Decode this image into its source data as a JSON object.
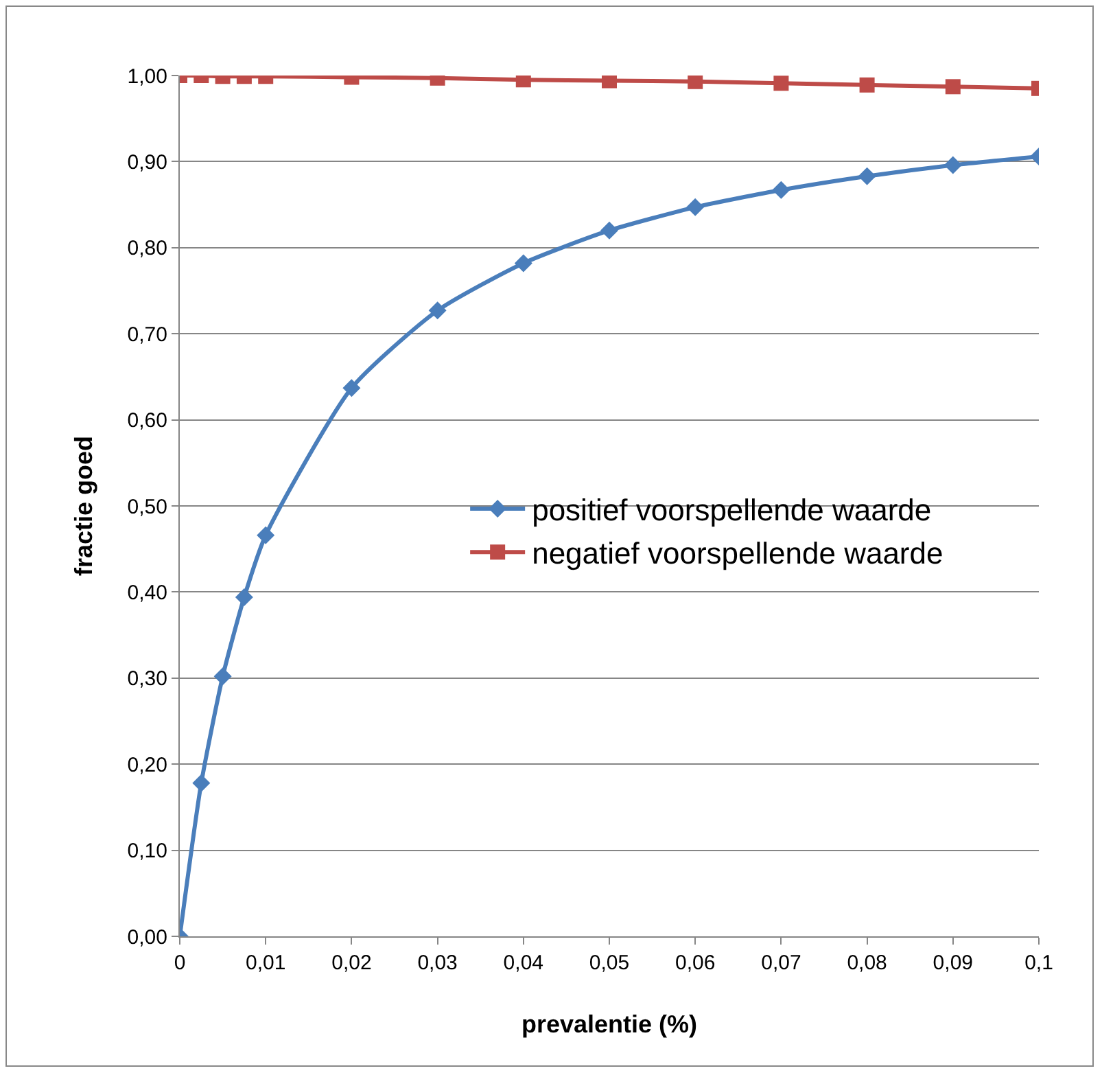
{
  "chart_data": {
    "type": "line",
    "xlabel": "prevalentie (%)",
    "ylabel": "fractie goed",
    "x": [
      0,
      0.0025,
      0.005,
      0.0075,
      0.01,
      0.02,
      0.03,
      0.04,
      0.05,
      0.06,
      0.07,
      0.08,
      0.09,
      0.1
    ],
    "series": [
      {
        "name": "positief voorspellende waarde",
        "color": "#4a7ebb",
        "marker": "diamond",
        "values": [
          0,
          0.178,
          0.302,
          0.394,
          0.466,
          0.637,
          0.727,
          0.782,
          0.82,
          0.847,
          0.867,
          0.883,
          0.896,
          0.906
        ]
      },
      {
        "name": "negatief voorspellende waarde",
        "color": "#be4b48",
        "marker": "square",
        "values": [
          1.0,
          1.0,
          0.999,
          0.999,
          0.999,
          0.998,
          0.997,
          0.995,
          0.994,
          0.993,
          0.991,
          0.989,
          0.987,
          0.985
        ]
      }
    ],
    "xlim": [
      0,
      0.1
    ],
    "xticks": [
      0,
      {
        "value": 0.01,
        "label": "0,01"
      },
      {
        "value": 0.02,
        "label": "0,02"
      },
      {
        "value": 0.03,
        "label": "0,03"
      },
      {
        "value": 0.04,
        "label": "0,04"
      },
      {
        "value": 0.05,
        "label": "0,05"
      },
      {
        "value": 0.06,
        "label": "0,06"
      },
      {
        "value": 0.07,
        "label": "0,07"
      },
      {
        "value": 0.08,
        "label": "0,08"
      },
      {
        "value": 0.09,
        "label": "0,09"
      },
      {
        "value": 0.1,
        "label": "0,1"
      }
    ],
    "ylim": [
      0,
      1
    ],
    "yticks": [
      {
        "value": 0,
        "label": "0,00"
      },
      {
        "value": 0.1,
        "label": "0,10"
      },
      {
        "value": 0.2,
        "label": "0,20"
      },
      {
        "value": 0.3,
        "label": "0,30"
      },
      {
        "value": 0.4,
        "label": "0,40"
      },
      {
        "value": 0.5,
        "label": "0,50"
      },
      {
        "value": 0.6,
        "label": "0,60"
      },
      {
        "value": 0.7,
        "label": "0,70"
      },
      {
        "value": 0.8,
        "label": "0,80"
      },
      {
        "value": 0.9,
        "label": "0,90"
      },
      {
        "value": 1,
        "label": "1,00"
      }
    ],
    "grid": "y",
    "legend": "right"
  }
}
